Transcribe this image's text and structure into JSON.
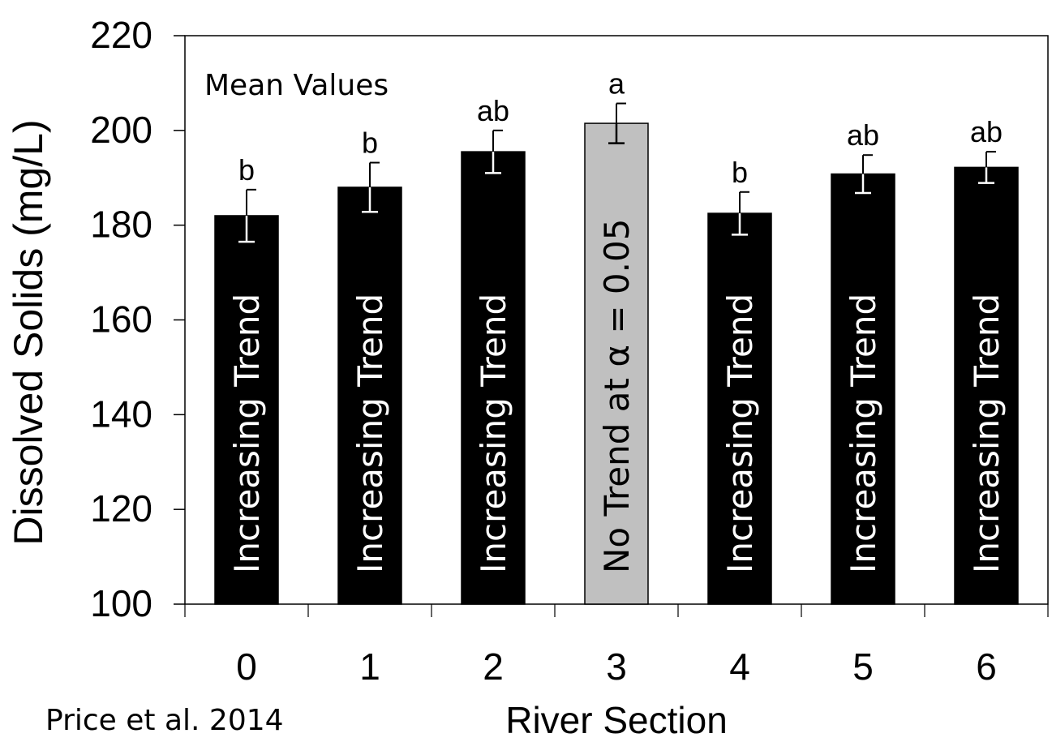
{
  "chart_data": {
    "type": "bar",
    "ylabel": "Dissolved Solids (mg/L)",
    "xlabel": "River Section",
    "ylim": [
      100,
      220
    ],
    "yticks": [
      100,
      120,
      140,
      160,
      180,
      200,
      220
    ],
    "grid": false,
    "categories": [
      "0",
      "1",
      "2",
      "3",
      "4",
      "5",
      "6"
    ],
    "values": [
      182,
      188,
      195.5,
      201.5,
      182.5,
      190.8,
      192.2
    ],
    "error": [
      5.5,
      5.2,
      4.5,
      4.2,
      4.5,
      4.0,
      3.3
    ],
    "letters": [
      "b",
      "b",
      "ab",
      "a",
      "b",
      "ab",
      "ab"
    ],
    "bar_labels": [
      "Increasing Trend",
      "Increasing Trend",
      "Increasing Trend",
      "No Trend at  α = 0.05",
      "Increasing Trend",
      "Increasing Trend",
      "Increasing Trend"
    ],
    "bar_colors": [
      "#000000",
      "#000000",
      "#000000",
      "#c0c0c0",
      "#000000",
      "#000000",
      "#000000"
    ],
    "annotation": "Mean Values",
    "source": "Price et al. 2014"
  }
}
